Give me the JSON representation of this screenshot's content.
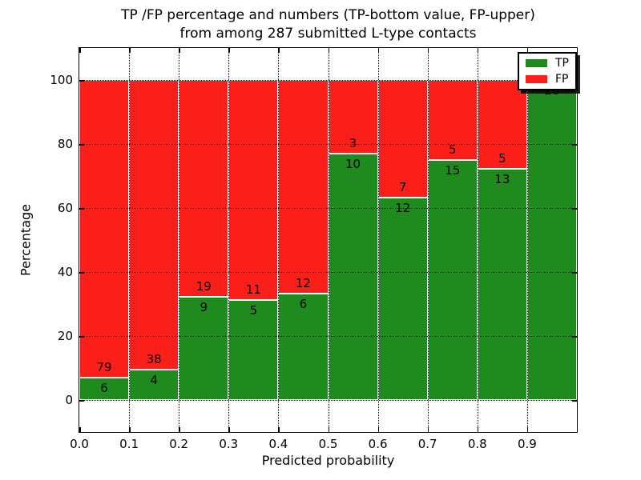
{
  "title_line1": "TP /FP percentage and numbers (TP-bottom value, FP-upper)",
  "title_line2": "from among 287 submitted L-type contacts",
  "xlabel": "Predicted probability",
  "ylabel": "Percentage",
  "legend": {
    "items": [
      {
        "label": "TP",
        "color": "#1f8b1f"
      },
      {
        "label": "FP",
        "color": "#fb1f1a"
      }
    ],
    "position": "upper right"
  },
  "colors": {
    "tp": "#1f8b1f",
    "fp": "#fb1f1a",
    "bar_edge": "#ffffff",
    "grid": "#000000",
    "text": "#000000",
    "background": "#ffffff"
  },
  "chart_data": {
    "type": "bar",
    "stacked": true,
    "normalized_to_percent": 100,
    "total_contacts": 287,
    "title": "TP /FP percentage and numbers (TP-bottom value, FP-upper) from among 287 submitted L-type contacts",
    "xlabel": "Predicted probability",
    "ylabel": "Percentage",
    "bins": [
      "0.0-0.1",
      "0.1-0.2",
      "0.2-0.3",
      "0.3-0.4",
      "0.4-0.5",
      "0.5-0.6",
      "0.6-0.7",
      "0.7-0.8",
      "0.8-0.9",
      "0.9-1.0"
    ],
    "series": [
      {
        "name": "TP",
        "color": "#1f8b1f",
        "values": [
          6,
          4,
          9,
          5,
          6,
          10,
          12,
          15,
          13,
          28
        ]
      },
      {
        "name": "FP",
        "color": "#fb1f1a",
        "values": [
          79,
          38,
          19,
          11,
          12,
          3,
          7,
          5,
          5,
          0
        ]
      }
    ],
    "tp_percent": [
      7.1,
      9.5,
      32.1,
      31.2,
      33.3,
      76.9,
      63.2,
      75.0,
      72.2,
      100.0
    ],
    "xticks": [
      "0.0",
      "0.1",
      "0.2",
      "0.3",
      "0.4",
      "0.5",
      "0.6",
      "0.7",
      "0.8",
      "0.9"
    ],
    "yticks": [
      0,
      20,
      40,
      60,
      80,
      100
    ],
    "xlim": [
      0.0,
      1.0
    ],
    "ylim": [
      -10,
      110
    ],
    "grid": "dotted, both axes, drawn over bars",
    "legend_position": "upper right"
  }
}
